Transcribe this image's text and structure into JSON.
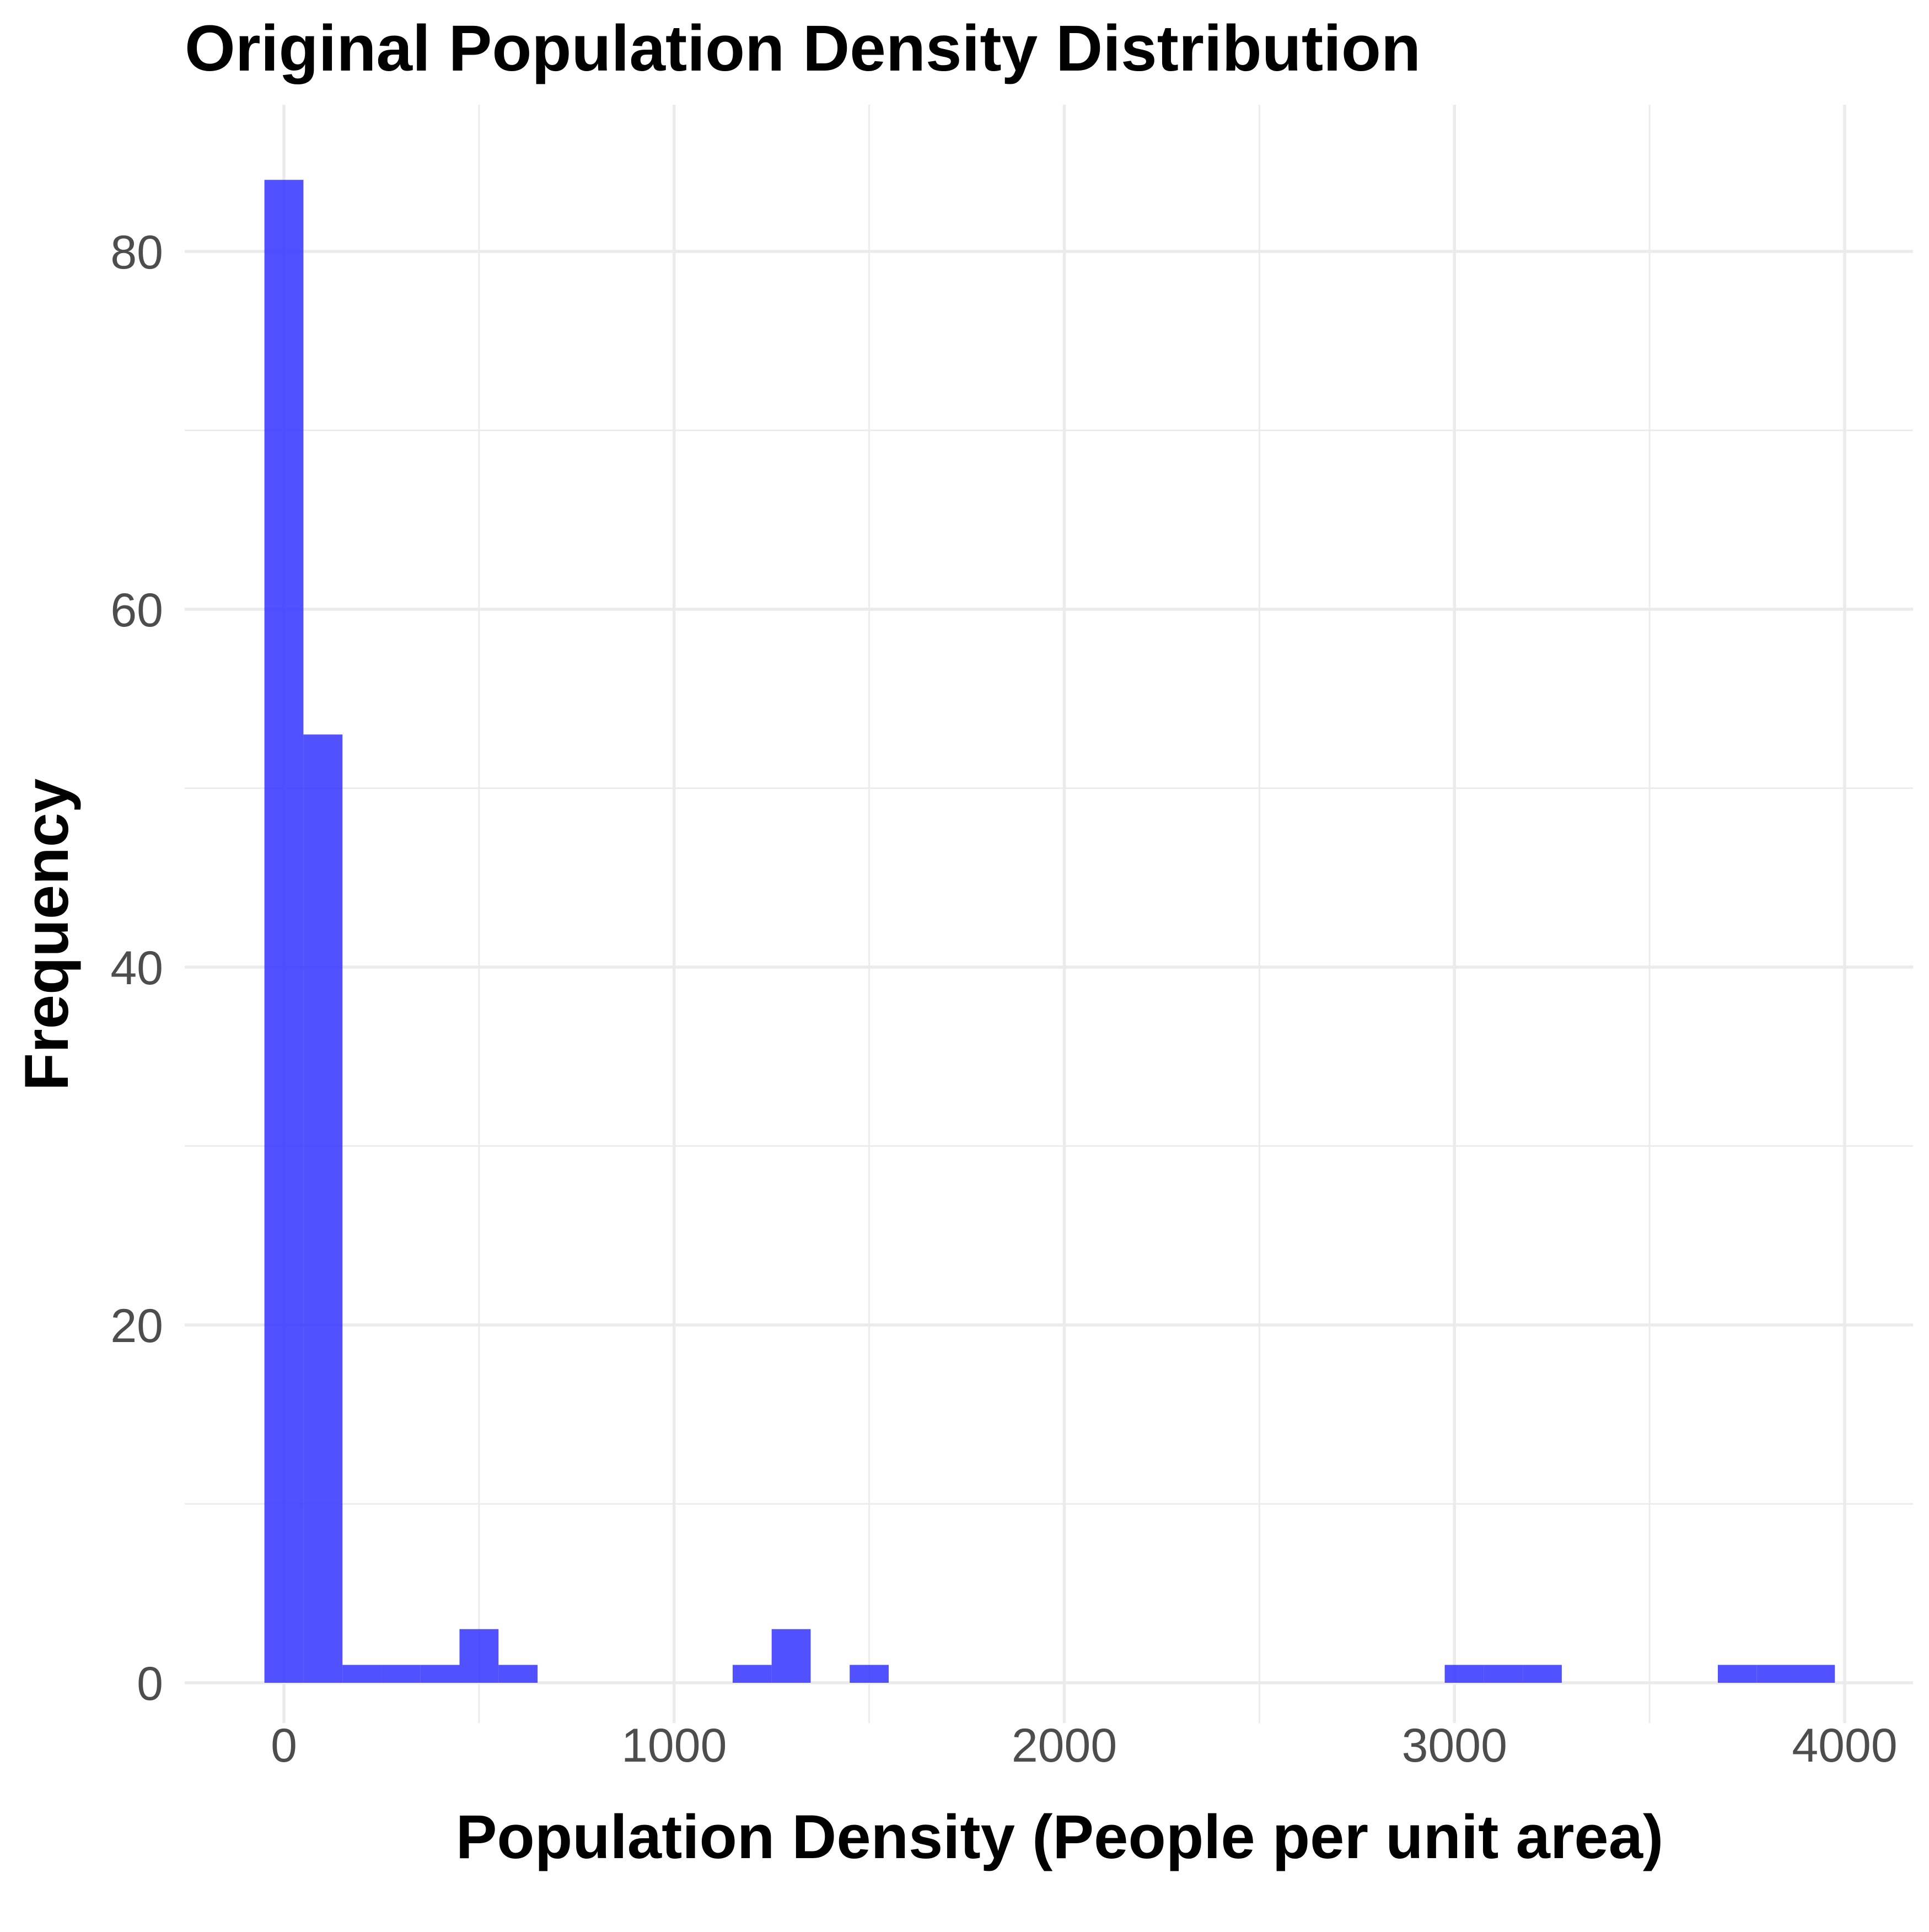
{
  "chart_data": {
    "type": "bar",
    "title": "Original Population Density Distribution",
    "xlabel": "Population Density (People per unit area)",
    "ylabel": "Frequency",
    "bar_color": "#3333ff",
    "bar_opacity": 0.85,
    "xlim": [
      -50,
      4000
    ],
    "ylim": [
      -4,
      88
    ],
    "x_ticks": [
      0,
      1000,
      2000,
      3000,
      4000
    ],
    "x_tick_labels": [
      "0",
      "1000",
      "2000",
      "3000",
      "4000"
    ],
    "y_ticks": [
      0,
      20,
      40,
      60,
      80
    ],
    "y_tick_labels": [
      "0",
      "20",
      "40",
      "60",
      "80"
    ],
    "grid": true,
    "legend": "none",
    "bins": [
      {
        "x0": -50,
        "x1": 50,
        "count": 84
      },
      {
        "x0": 50,
        "x1": 150,
        "count": 53
      },
      {
        "x0": 150,
        "x1": 250,
        "count": 1
      },
      {
        "x0": 250,
        "x1": 350,
        "count": 1
      },
      {
        "x0": 350,
        "x1": 450,
        "count": 1
      },
      {
        "x0": 450,
        "x1": 550,
        "count": 3
      },
      {
        "x0": 550,
        "x1": 650,
        "count": 1
      },
      {
        "x0": 1150,
        "x1": 1250,
        "count": 1
      },
      {
        "x0": 1250,
        "x1": 1350,
        "count": 3
      },
      {
        "x0": 1450,
        "x1": 1550,
        "count": 1
      },
      {
        "x0": 2975,
        "x1": 3075,
        "count": 1
      },
      {
        "x0": 3075,
        "x1": 3175,
        "count": 1
      },
      {
        "x0": 3175,
        "x1": 3275,
        "count": 1
      },
      {
        "x0": 3675,
        "x1": 3775,
        "count": 1
      },
      {
        "x0": 3775,
        "x1": 3875,
        "count": 1
      },
      {
        "x0": 3875,
        "x1": 3975,
        "count": 1
      }
    ]
  }
}
